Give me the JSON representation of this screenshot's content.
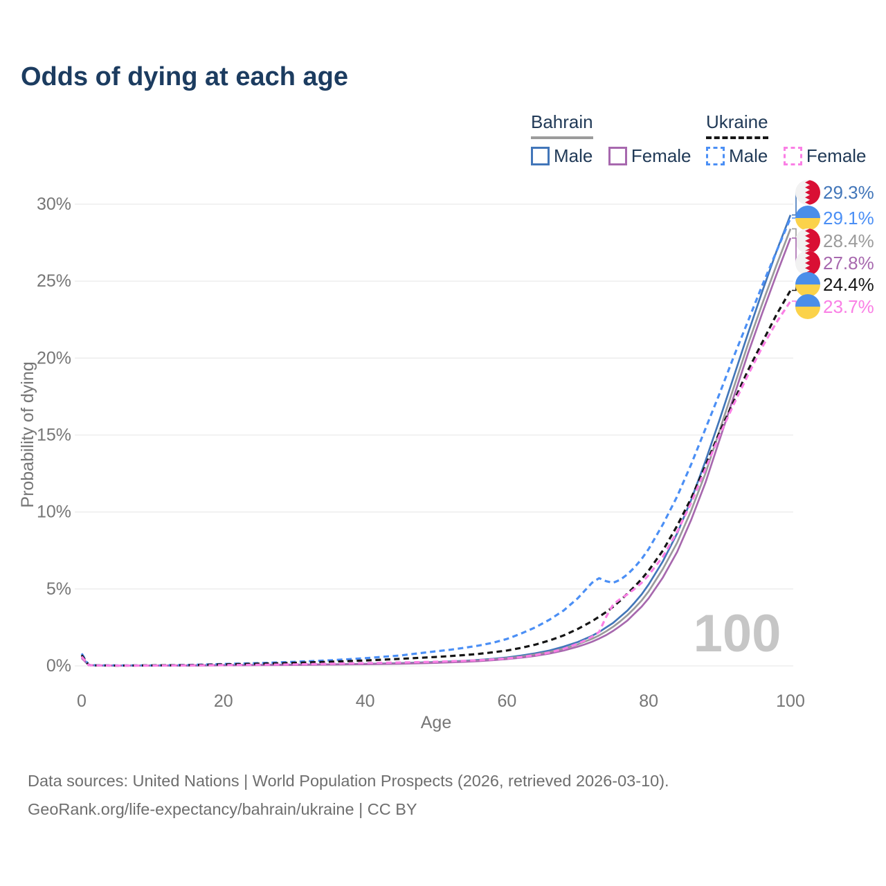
{
  "title": "Odds of dying at each age",
  "legend": {
    "groups": [
      {
        "country": "Bahrain",
        "line_style": "solid",
        "line_color": "#9b9b9b",
        "items": [
          {
            "label": "Male",
            "color": "#4276b9",
            "style": "solid"
          },
          {
            "label": "Female",
            "color": "#a768ae",
            "style": "solid"
          }
        ]
      },
      {
        "country": "Ukraine",
        "line_style": "dashed",
        "line_color": "#161616",
        "items": [
          {
            "label": "Male",
            "color": "#4b8ff5",
            "style": "dashed"
          },
          {
            "label": "Female",
            "color": "#fa7fe5",
            "style": "dashed"
          }
        ]
      }
    ]
  },
  "chart_data": {
    "type": "line",
    "title": "Odds of dying at each age",
    "xlabel": "Age",
    "ylabel": "Probability of dying",
    "xlim": [
      0,
      100
    ],
    "ylim": [
      0,
      31
    ],
    "x_ticks": [
      0,
      20,
      40,
      60,
      80,
      100
    ],
    "y_ticks": [
      {
        "v": 0,
        "label": "0%"
      },
      {
        "v": 5,
        "label": "5%"
      },
      {
        "v": 10,
        "label": "10%"
      },
      {
        "v": 15,
        "label": "15%"
      },
      {
        "v": 20,
        "label": "20%"
      },
      {
        "v": 25,
        "label": "25%"
      },
      {
        "v": 30,
        "label": "30%"
      }
    ],
    "grid": "horizontal",
    "legend_position": "top-right",
    "watermark": "100",
    "ages": [
      0,
      1,
      2,
      5,
      10,
      15,
      20,
      25,
      30,
      35,
      40,
      45,
      50,
      52,
      54,
      56,
      58,
      60,
      62,
      64,
      66,
      68,
      70,
      71,
      72,
      73,
      74,
      75,
      76,
      77,
      78,
      79,
      80,
      82,
      84,
      86,
      88,
      90,
      92,
      94,
      96,
      98,
      100
    ],
    "series": [
      {
        "name": "Bahrain Male",
        "flag": "bahrain",
        "color": "#4276b9",
        "dashed": false,
        "end_label": "29.3%",
        "end_value": 29.3,
        "values": [
          0.6,
          0.05,
          0.03,
          0.02,
          0.02,
          0.03,
          0.05,
          0.06,
          0.08,
          0.1,
          0.13,
          0.18,
          0.25,
          0.29,
          0.33,
          0.39,
          0.46,
          0.55,
          0.67,
          0.82,
          1.0,
          1.25,
          1.55,
          1.75,
          1.95,
          2.2,
          2.5,
          2.8,
          3.2,
          3.6,
          4.1,
          4.65,
          5.3,
          6.8,
          8.6,
          10.8,
          13.3,
          16.0,
          18.8,
          21.6,
          24.3,
          26.9,
          29.3
        ]
      },
      {
        "name": "Bahrain Both sexes",
        "flag": "bahrain",
        "color": "#9b9b9b",
        "dashed": false,
        "end_label": "28.4%",
        "end_value": 28.4,
        "values": [
          0.55,
          0.05,
          0.03,
          0.02,
          0.02,
          0.03,
          0.04,
          0.06,
          0.07,
          0.09,
          0.12,
          0.16,
          0.23,
          0.26,
          0.3,
          0.35,
          0.42,
          0.5,
          0.6,
          0.74,
          0.9,
          1.12,
          1.4,
          1.58,
          1.76,
          1.98,
          2.25,
          2.55,
          2.9,
          3.3,
          3.75,
          4.25,
          4.85,
          6.3,
          8.0,
          10.1,
          12.5,
          15.3,
          18.1,
          20.9,
          23.5,
          26.0,
          28.4
        ]
      },
      {
        "name": "Bahrain Female",
        "flag": "bahrain",
        "color": "#a768ae",
        "dashed": false,
        "end_label": "27.8%",
        "end_value": 27.8,
        "values": [
          0.5,
          0.04,
          0.03,
          0.02,
          0.02,
          0.02,
          0.04,
          0.05,
          0.06,
          0.08,
          0.11,
          0.14,
          0.2,
          0.23,
          0.26,
          0.31,
          0.37,
          0.44,
          0.53,
          0.65,
          0.8,
          1.0,
          1.25,
          1.4,
          1.57,
          1.77,
          2.0,
          2.28,
          2.6,
          2.95,
          3.4,
          3.85,
          4.4,
          5.75,
          7.4,
          9.5,
          11.9,
          14.7,
          17.5,
          20.3,
          22.9,
          25.4,
          27.8
        ]
      },
      {
        "name": "Ukraine Male",
        "flag": "ukraine",
        "color": "#4b8ff5",
        "dashed": true,
        "end_label": "29.1%",
        "end_value": 29.1,
        "values": [
          0.8,
          0.06,
          0.04,
          0.03,
          0.03,
          0.06,
          0.12,
          0.18,
          0.26,
          0.36,
          0.5,
          0.68,
          0.95,
          1.05,
          1.18,
          1.32,
          1.5,
          1.75,
          2.1,
          2.5,
          3.0,
          3.6,
          4.4,
          4.9,
          5.4,
          5.7,
          5.5,
          5.4,
          5.6,
          5.95,
          6.4,
          6.95,
          7.6,
          9.2,
          11.0,
          13.1,
          15.4,
          17.7,
          20.1,
          22.4,
          24.7,
          26.9,
          29.1
        ]
      },
      {
        "name": "Ukraine Both sexes",
        "flag": "ukraine",
        "color": "#161616",
        "dashed": true,
        "end_label": "24.4%",
        "end_value": 24.4,
        "values": [
          0.7,
          0.05,
          0.03,
          0.02,
          0.03,
          0.05,
          0.1,
          0.14,
          0.2,
          0.27,
          0.35,
          0.46,
          0.58,
          0.64,
          0.7,
          0.78,
          0.88,
          1.0,
          1.17,
          1.38,
          1.65,
          1.98,
          2.4,
          2.65,
          2.9,
          3.2,
          3.5,
          3.85,
          4.25,
          4.7,
          5.15,
          5.65,
          6.2,
          7.5,
          9.1,
          10.9,
          13.0,
          15.2,
          17.2,
          19.2,
          21.0,
          22.8,
          24.4
        ]
      },
      {
        "name": "Ukraine Female",
        "flag": "ukraine",
        "color": "#fa7fe5",
        "dashed": true,
        "end_label": "23.7%",
        "end_value": 23.7,
        "values": [
          0.6,
          0.05,
          0.03,
          0.02,
          0.02,
          0.03,
          0.05,
          0.07,
          0.1,
          0.14,
          0.18,
          0.22,
          0.27,
          0.3,
          0.33,
          0.37,
          0.42,
          0.48,
          0.57,
          0.7,
          0.87,
          1.1,
          1.45,
          1.65,
          1.9,
          2.2,
          3.2,
          4.0,
          4.35,
          4.65,
          5.0,
          5.4,
          5.9,
          7.1,
          8.7,
          10.6,
          12.8,
          15.0,
          17.0,
          18.9,
          20.7,
          22.3,
          23.7
        ]
      }
    ],
    "flag_colors": {
      "bahrain": {
        "white": "#f2f2f2",
        "red": "#d90f34"
      },
      "ukraine": {
        "blue": "#4a8ee9",
        "yellow": "#fbd24a"
      }
    }
  },
  "footer": {
    "line1": "Data sources: United Nations | World Population Prospects (2026, retrieved 2026-03-10).",
    "line2": "GeoRank.org/life-expectancy/bahrain/ukraine | CC BY"
  }
}
